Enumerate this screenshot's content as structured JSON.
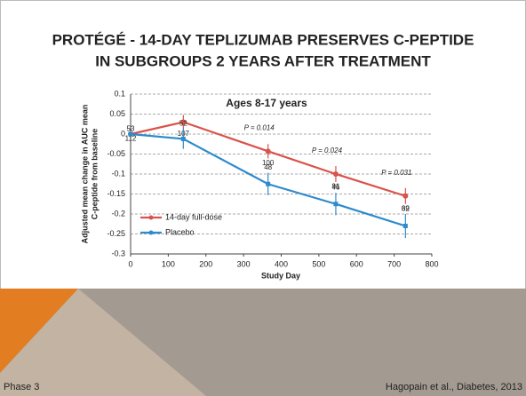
{
  "slide": {
    "title": [
      "PROTÉGÉ - 14-DAY TEPLIZUMAB PRESERVES C-PEPTIDE",
      "IN SUBGROUPS 2 YEARS AFTER TREATMENT"
    ],
    "footer_left": "Phase 3",
    "footer_right": "Hagopain et al., Diabetes, 2013"
  },
  "chart_data": {
    "type": "line",
    "title": "Ages 8-17 years",
    "ylabel": [
      "Adjusted mean change in AUC mean",
      "C-peptide from baseline"
    ],
    "xlabel": "Study Day",
    "x": [
      0,
      140,
      365,
      545,
      730
    ],
    "series": [
      {
        "name": "14-day full-dose",
        "color": "#d9534a",
        "values": [
          0,
          0.03,
          -0.043,
          -0.1,
          -0.155
        ],
        "errors": [
          0,
          0.018,
          0.018,
          0.02,
          0.02
        ],
        "n": [
          112,
          107,
          100,
          91,
          69
        ]
      },
      {
        "name": "Placebo",
        "color": "#2e8bcc",
        "values": [
          0,
          -0.012,
          -0.125,
          -0.175,
          -0.23
        ],
        "errors": [
          0,
          0.025,
          0.028,
          0.028,
          0.03
        ],
        "n": [
          53,
          52,
          48,
          46,
          32
        ]
      }
    ],
    "p_values": [
      null,
      null,
      "P = 0.014",
      "P = 0.024",
      "P = 0.031"
    ],
    "xlim": [
      0,
      800
    ],
    "xticks": [
      0,
      100,
      200,
      300,
      400,
      500,
      600,
      700,
      800
    ],
    "ylim": [
      -0.3,
      0.1
    ],
    "yticks": [
      0.1,
      0.05,
      0,
      -0.05,
      -0.1,
      -0.15,
      -0.2,
      -0.25,
      -0.3
    ],
    "grid": true,
    "legend": "lower left"
  }
}
